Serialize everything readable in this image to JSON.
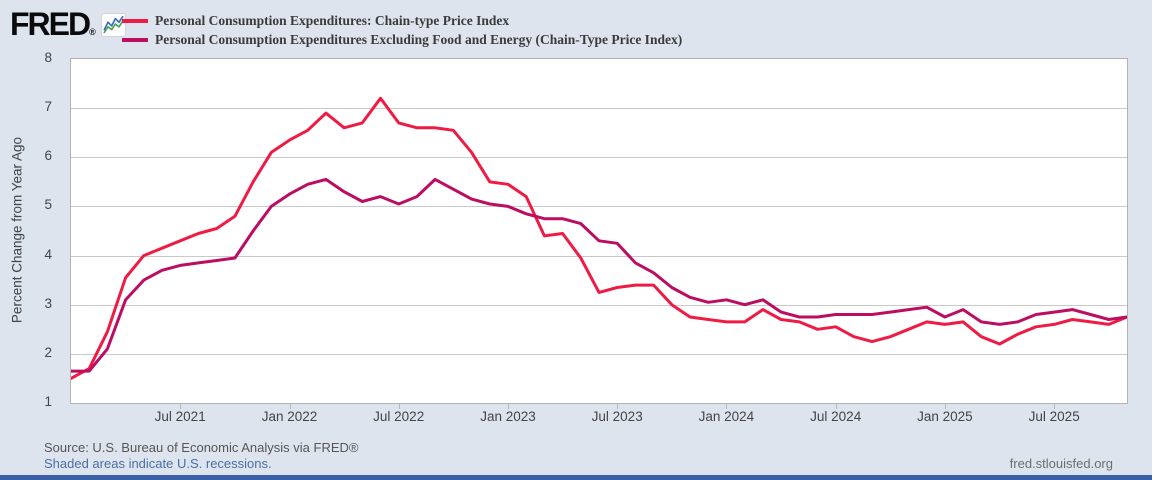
{
  "brand": {
    "logo_text": "FRED",
    "registered_mark": "®"
  },
  "legend": {
    "series": [
      {
        "id": "pce",
        "label": "Personal Consumption Expenditures: Chain-type Price Index",
        "color": "#ee1c44"
      },
      {
        "id": "core-pce",
        "label": "Personal Consumption Expenditures Excluding Food and Energy (Chain-Type Price Index)",
        "color": "#bb0e62"
      }
    ]
  },
  "y_axis": {
    "title": "Percent Change from Year Ago",
    "min": 1,
    "max": 8,
    "ticks": [
      8,
      7,
      6,
      5,
      4,
      3,
      2,
      1
    ]
  },
  "x_axis": {
    "ticks": [
      {
        "label": "Jul 2021",
        "month_index": 6
      },
      {
        "label": "Jan 2022",
        "month_index": 12
      },
      {
        "label": "Jul 2022",
        "month_index": 18
      },
      {
        "label": "Jan 2023",
        "month_index": 24
      },
      {
        "label": "Jul 2023",
        "month_index": 30
      },
      {
        "label": "Jan 2024",
        "month_index": 36
      },
      {
        "label": "Jul 2024",
        "month_index": 42
      },
      {
        "label": "Jan 2025",
        "month_index": 48
      },
      {
        "label": "Jul 2025",
        "month_index": 54
      }
    ]
  },
  "footer": {
    "source": "Source: U.S. Bureau of Economic Analysis via FRED®",
    "recessions_note": "Shaded areas indicate U.S. recessions.",
    "site": "fred.stlouisfed.org"
  },
  "colors": {
    "background": "#dde4ee",
    "plot_background": "#ffffff",
    "gridline": "#c9c9c9",
    "pce_red": "#ee1c44",
    "core_magenta": "#bb0e62",
    "link_blue": "#4a6fa5",
    "bottom_bar_blue": "#3a61a8",
    "spark_icon_blue": "#3b6fb5",
    "spark_icon_green": "#4ba05c"
  },
  "chart_data": {
    "type": "line",
    "title": "",
    "xlabel": "",
    "ylabel": "Percent Change from Year Ago",
    "ylim": [
      1,
      8
    ],
    "grid": "horizontal",
    "legend_position": "top-left",
    "x": [
      "2021-01",
      "2021-02",
      "2021-03",
      "2021-04",
      "2021-05",
      "2021-06",
      "2021-07",
      "2021-08",
      "2021-09",
      "2021-10",
      "2021-11",
      "2021-12",
      "2022-01",
      "2022-02",
      "2022-03",
      "2022-04",
      "2022-05",
      "2022-06",
      "2022-07",
      "2022-08",
      "2022-09",
      "2022-10",
      "2022-11",
      "2022-12",
      "2023-01",
      "2023-02",
      "2023-03",
      "2023-04",
      "2023-05",
      "2023-06",
      "2023-07",
      "2023-08",
      "2023-09",
      "2023-10",
      "2023-11",
      "2023-12",
      "2024-01",
      "2024-02",
      "2024-03",
      "2024-04",
      "2024-05",
      "2024-06",
      "2024-07",
      "2024-08",
      "2024-09",
      "2024-10",
      "2024-11",
      "2024-12",
      "2025-01",
      "2025-02",
      "2025-03",
      "2025-04",
      "2025-05",
      "2025-06",
      "2025-07",
      "2025-08",
      "2025-09",
      "2025-10",
      "2025-11"
    ],
    "series": [
      {
        "id": "pce",
        "name": "Personal Consumption Expenditures: Chain-type Price Index",
        "color": "#ee1c44",
        "values": [
          1.5,
          1.7,
          2.45,
          3.55,
          4.0,
          4.15,
          4.3,
          4.45,
          4.55,
          4.8,
          5.5,
          6.1,
          6.35,
          6.55,
          6.9,
          6.6,
          6.7,
          7.2,
          6.7,
          6.6,
          6.6,
          6.55,
          6.1,
          5.5,
          5.45,
          5.2,
          4.4,
          4.45,
          3.95,
          3.25,
          3.35,
          3.4,
          3.4,
          3.0,
          2.75,
          2.7,
          2.65,
          2.65,
          2.9,
          2.7,
          2.65,
          2.5,
          2.55,
          2.35,
          2.25,
          2.35,
          2.5,
          2.65,
          2.6,
          2.65,
          2.35,
          2.2,
          2.4,
          2.55,
          2.6,
          2.7,
          2.65,
          2.6,
          2.75
        ]
      },
      {
        "id": "core-pce",
        "name": "Personal Consumption Expenditures Excluding Food and Energy (Chain-Type Price Index)",
        "color": "#bb0e62",
        "values": [
          1.65,
          1.65,
          2.1,
          3.1,
          3.5,
          3.7,
          3.8,
          3.85,
          3.9,
          3.95,
          4.5,
          5.0,
          5.25,
          5.45,
          5.55,
          5.3,
          5.1,
          5.2,
          5.05,
          5.2,
          5.55,
          5.35,
          5.15,
          5.05,
          5.0,
          4.85,
          4.75,
          4.75,
          4.65,
          4.3,
          4.25,
          3.85,
          3.65,
          3.35,
          3.15,
          3.05,
          3.1,
          3.0,
          3.1,
          2.85,
          2.75,
          2.75,
          2.8,
          2.8,
          2.8,
          2.85,
          2.9,
          2.95,
          2.75,
          2.9,
          2.65,
          2.6,
          2.65,
          2.8,
          2.85,
          2.9,
          2.8,
          2.7,
          2.75
        ]
      }
    ]
  }
}
